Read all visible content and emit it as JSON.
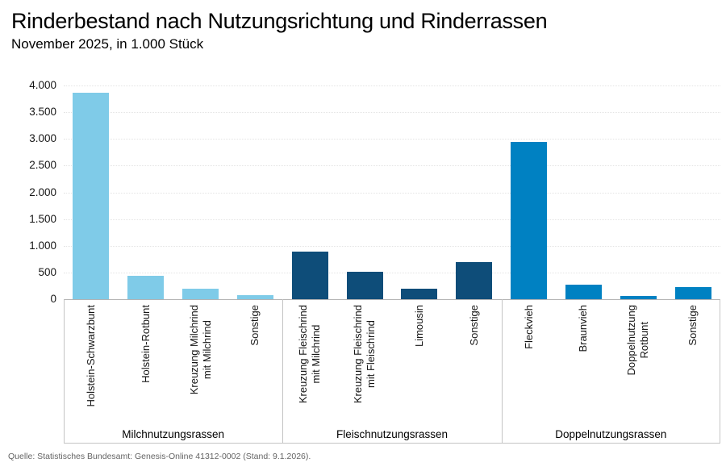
{
  "header": {
    "title": "Rinderbestand nach Nutzungsrichtung und Rinderrassen",
    "subtitle": "November 2025, in 1.000 Stück"
  },
  "footer": {
    "source": "Quelle: Statistisches Bundesamt: Genesis-Online 41312-0002 (Stand: 9.1.2026)."
  },
  "chart_data": {
    "type": "bar",
    "title": "Rinderbestand nach Nutzungsrichtung und Rinderrassen",
    "subtitle": "November 2025, in 1.000 Stück",
    "unit": "1.000 Stück",
    "xlabel": "",
    "ylabel": "",
    "ylim": [
      0,
      4000
    ],
    "ytick_step": 500,
    "ytick_labels": [
      "0",
      "500",
      "1.000",
      "1.500",
      "2.000",
      "2.500",
      "3.000",
      "3.500",
      "4.000"
    ],
    "grid": true,
    "legend": "none",
    "groups": [
      {
        "label": "Milchnutzungsrassen",
        "color": "#7FCBE8",
        "bars": [
          {
            "label": "Holstein-Schwarzbunt",
            "lines": [
              "Holstein-Schwarzbunt"
            ],
            "value": 3860
          },
          {
            "label": "Holstein-Rotbunt",
            "lines": [
              "Holstein-Rotbunt"
            ],
            "value": 440
          },
          {
            "label": "Kreuzung Milchrind mit Milchrind",
            "lines": [
              "Kreuzung Milchrind",
              "mit Milchrind"
            ],
            "value": 200
          },
          {
            "label": "Sonstige",
            "lines": [
              "Sonstige"
            ],
            "value": 80
          }
        ]
      },
      {
        "label": "Fleischnutzungsrassen",
        "color": "#0E4D79",
        "bars": [
          {
            "label": "Kreuzung Fleischrind mit Milchrind",
            "lines": [
              "Kreuzung Fleischrind",
              "mit Milchrind"
            ],
            "value": 890
          },
          {
            "label": "Kreuzung Fleischrind mit Fleischrind",
            "lines": [
              "Kreuzung Fleischrind",
              "mit Fleischrind"
            ],
            "value": 515
          },
          {
            "label": "Limousin",
            "lines": [
              "Limousin"
            ],
            "value": 195
          },
          {
            "label": "Sonstige",
            "lines": [
              "Sonstige"
            ],
            "value": 690
          }
        ]
      },
      {
        "label": "Doppelnutzungsrassen",
        "color": "#0081C2",
        "bars": [
          {
            "label": "Fleckvieh",
            "lines": [
              "Fleckvieh"
            ],
            "value": 2950
          },
          {
            "label": "Braunvieh",
            "lines": [
              "Braunvieh"
            ],
            "value": 265
          },
          {
            "label": "Doppelnutzung Rotbunt",
            "lines": [
              "Doppelnutzung",
              "Rotbunt"
            ],
            "value": 55
          },
          {
            "label": "Sonstige",
            "lines": [
              "Sonstige"
            ],
            "value": 230
          }
        ]
      }
    ]
  }
}
